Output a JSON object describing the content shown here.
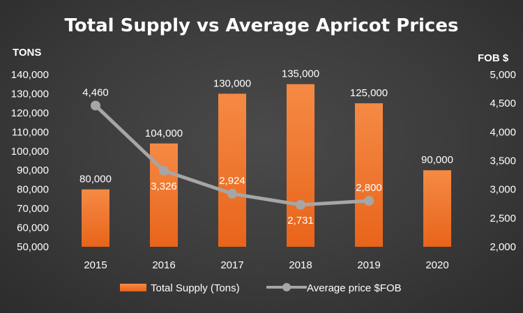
{
  "chart_data": {
    "type": "bar",
    "title": "Total Supply vs Average Apricot Prices",
    "y_left_label": "TONS",
    "y_right_label": "FOB $",
    "categories": [
      "2015",
      "2016",
      "2017",
      "2018",
      "2019",
      "2020"
    ],
    "series": [
      {
        "name": "Total Supply (Tons)",
        "type": "bar",
        "axis": "left",
        "values": [
          80000,
          104000,
          130000,
          135000,
          125000,
          90000
        ],
        "labels": [
          "80,000",
          "104,000",
          "130,000",
          "135,000",
          "125,000",
          "90,000"
        ],
        "color": "#f07a2b"
      },
      {
        "name": "Average price $FOB",
        "type": "line",
        "axis": "right",
        "values": [
          4460,
          3326,
          2924,
          2731,
          2800,
          null
        ],
        "labels": [
          "4,460",
          "3,326",
          "2,924",
          "2,731",
          "2,800",
          ""
        ],
        "color": "#a6a6a6"
      }
    ],
    "y_left": {
      "min": 50000,
      "max": 140000,
      "ticks": [
        50000,
        60000,
        70000,
        80000,
        90000,
        100000,
        110000,
        120000,
        130000,
        140000
      ],
      "tick_labels": [
        "50,000",
        "60,000",
        "70,000",
        "80,000",
        "90,000",
        "100,000",
        "110,000",
        "120,000",
        "130,000",
        "140,000"
      ]
    },
    "y_right": {
      "min": 2000,
      "max": 5000,
      "ticks": [
        2000,
        2500,
        3000,
        3500,
        4000,
        4500,
        5000
      ],
      "tick_labels": [
        "2,000",
        "2,500",
        "3,000",
        "3,500",
        "4,000",
        "4,500",
        "5,000"
      ]
    },
    "grid": false,
    "legend_position": "bottom",
    "background": "#3b3b3b"
  }
}
